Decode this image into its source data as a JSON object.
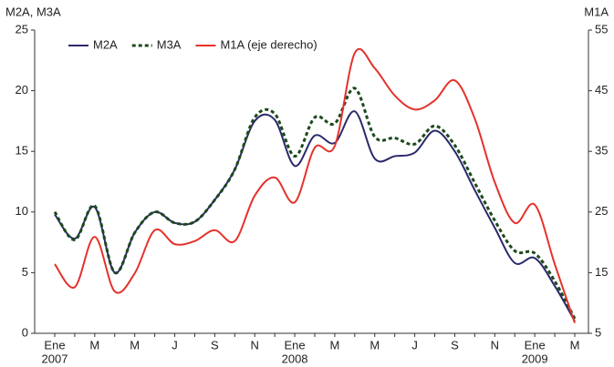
{
  "chart_data": {
    "type": "line",
    "y_axis_title": "M2A, M3A",
    "y2_axis_title": "M1A",
    "categories": [
      "Ene",
      null,
      "M",
      null,
      "M",
      null,
      "J",
      null,
      "S",
      null,
      "N",
      null,
      "Ene",
      null,
      "M",
      null,
      "M",
      null,
      "J",
      null,
      "S",
      null,
      "N",
      null,
      "Ene",
      null,
      "M"
    ],
    "years": [
      "2007",
      null,
      null,
      null,
      null,
      null,
      null,
      null,
      null,
      null,
      null,
      null,
      "2008",
      null,
      null,
      null,
      null,
      null,
      null,
      null,
      null,
      null,
      null,
      null,
      "2009",
      null,
      null
    ],
    "ylim": [
      0,
      25
    ],
    "yticks": [
      0,
      5,
      10,
      15,
      20,
      25
    ],
    "y2lim": [
      5,
      55
    ],
    "y2ticks": [
      5,
      15,
      25,
      35,
      45,
      55
    ],
    "legend": "top-left",
    "series": [
      {
        "name": "M2A",
        "color": "#2b2a6b",
        "dash": false,
        "values": [
          9.8,
          7.8,
          10.4,
          5.0,
          8.3,
          10.0,
          9.1,
          9.2,
          11.0,
          13.5,
          17.5,
          17.6,
          13.8,
          16.3,
          15.7,
          18.3,
          14.4,
          14.6,
          14.9,
          16.7,
          15.0,
          11.8,
          8.7,
          5.8,
          6.2,
          3.9,
          1.0
        ]
      },
      {
        "name": "M3A",
        "color": "#1c4a1c",
        "dash": true,
        "values": [
          10.0,
          7.7,
          10.5,
          5.0,
          8.3,
          10.0,
          9.1,
          9.2,
          11.0,
          13.5,
          17.8,
          18.1,
          14.6,
          17.8,
          17.3,
          20.2,
          16.2,
          16.1,
          15.6,
          17.1,
          15.5,
          12.4,
          9.3,
          6.8,
          6.6,
          4.3,
          1.2
        ]
      },
      {
        "name": "M1A (eje derecho)",
        "color": "#e5322b",
        "dash": false,
        "axis": "y2",
        "values": [
          16.4,
          12.6,
          20.9,
          11.9,
          14.9,
          22.0,
          19.7,
          20.2,
          22.0,
          20.2,
          27.7,
          30.7,
          26.6,
          35.6,
          35.9,
          51.2,
          48.7,
          44.2,
          41.9,
          43.4,
          46.7,
          40.4,
          29.9,
          23.2,
          26.2,
          16.4,
          6.7
        ]
      }
    ]
  }
}
